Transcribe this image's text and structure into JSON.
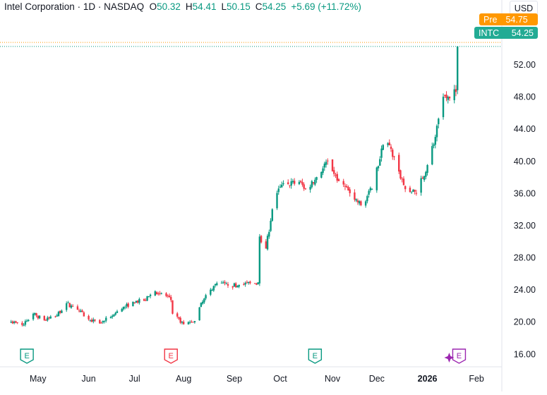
{
  "header": {
    "symbol": "Intel Corporation",
    "interval": "1D",
    "exchange": "NASDAQ",
    "open_label": "O",
    "open": "50.32",
    "high_label": "H",
    "high": "54.41",
    "low_label": "L",
    "low": "50.15",
    "close_label": "C",
    "close": "54.25",
    "change": "+5.69 (+11.72%)"
  },
  "currency_button": "USD",
  "pre_tag": {
    "label": "Pre",
    "value": "54.75"
  },
  "price_tag": {
    "ticker": "INTC",
    "value": "54.25"
  },
  "colors": {
    "up": "#089981",
    "down": "#f23645",
    "earnings_up": "#089981",
    "earnings_down": "#f23645",
    "earnings_future": "#9c27b0",
    "pre": "#ff9800"
  },
  "chart_data": {
    "type": "candlestick",
    "symbol": "INTC",
    "y_ticks": [
      16,
      20,
      24,
      28,
      32,
      36,
      40,
      44,
      48,
      52
    ],
    "y_tick_labels": [
      "16.00",
      "20.00",
      "24.00",
      "28.00",
      "32.00",
      "36.00",
      "40.00",
      "44.00",
      "48.00",
      "52.00"
    ],
    "ylim": [
      14.4,
      58.1
    ],
    "x_labels": [
      {
        "label": "May",
        "date": "2025-05-01"
      },
      {
        "label": "Jun",
        "date": "2025-06-02"
      },
      {
        "label": "Jul",
        "date": "2025-07-01"
      },
      {
        "label": "Aug",
        "date": "2025-08-01"
      },
      {
        "label": "Sep",
        "date": "2025-09-02"
      },
      {
        "label": "Oct",
        "date": "2025-10-01"
      },
      {
        "label": "Nov",
        "date": "2025-11-03"
      },
      {
        "label": "Dec",
        "date": "2025-12-01"
      },
      {
        "label": "2026",
        "date": "2026-01-02",
        "bold": true
      },
      {
        "label": "Feb",
        "date": "2026-02-02"
      }
    ],
    "closes": [
      [
        "2025-04-14",
        20.0
      ],
      [
        "2025-04-21",
        19.6
      ],
      [
        "2025-04-28",
        21.0
      ],
      [
        "2025-05-05",
        20.2
      ],
      [
        "2025-05-12",
        20.6
      ],
      [
        "2025-05-19",
        22.3
      ],
      [
        "2025-05-26",
        21.5
      ],
      [
        "2025-06-02",
        20.3
      ],
      [
        "2025-06-09",
        19.8
      ],
      [
        "2025-06-16",
        20.6
      ],
      [
        "2025-06-23",
        21.6
      ],
      [
        "2025-06-30",
        22.5
      ],
      [
        "2025-07-07",
        22.6
      ],
      [
        "2025-07-14",
        23.8
      ],
      [
        "2025-07-21",
        23.2
      ],
      [
        "2025-07-24",
        22.7
      ],
      [
        "2025-07-25",
        21.0
      ],
      [
        "2025-08-01",
        19.7
      ],
      [
        "2025-08-08",
        20.1
      ],
      [
        "2025-08-11",
        21.8
      ],
      [
        "2025-08-18",
        24.0
      ],
      [
        "2025-08-22",
        24.8
      ],
      [
        "2025-08-29",
        24.5
      ],
      [
        "2025-09-05",
        24.6
      ],
      [
        "2025-09-12",
        24.8
      ],
      [
        "2025-09-17",
        24.9
      ],
      [
        "2025-09-18",
        30.6
      ],
      [
        "2025-09-22",
        29.1
      ],
      [
        "2025-09-26",
        34.0
      ],
      [
        "2025-10-01",
        36.8
      ],
      [
        "2025-10-06",
        37.1
      ],
      [
        "2025-10-13",
        37.4
      ],
      [
        "2025-10-17",
        36.5
      ],
      [
        "2025-10-24",
        38.0
      ],
      [
        "2025-10-31",
        40.0
      ],
      [
        "2025-11-07",
        37.5
      ],
      [
        "2025-11-14",
        36.0
      ],
      [
        "2025-11-21",
        34.5
      ],
      [
        "2025-11-28",
        36.5
      ],
      [
        "2025-12-05",
        42.0
      ],
      [
        "2025-12-10",
        41.5
      ],
      [
        "2025-12-15",
        38.7
      ],
      [
        "2025-12-19",
        36.5
      ],
      [
        "2025-12-26",
        36.0
      ],
      [
        "2026-01-02",
        39.5
      ],
      [
        "2026-01-07",
        43.0
      ],
      [
        "2026-01-12",
        48.0
      ],
      [
        "2026-01-16",
        47.8
      ],
      [
        "2026-01-20",
        48.6
      ],
      [
        "2026-01-21",
        54.25
      ]
    ],
    "last_close": 54.25,
    "pre_market": 54.75,
    "earnings_markers": [
      {
        "date": "2025-04-24",
        "label": "E",
        "kind": "beat"
      },
      {
        "date": "2025-07-24",
        "label": "E",
        "kind": "miss"
      },
      {
        "date": "2025-10-23",
        "label": "E",
        "kind": "beat"
      },
      {
        "date": "2026-01-22",
        "label": "E",
        "kind": "upcoming"
      }
    ]
  }
}
